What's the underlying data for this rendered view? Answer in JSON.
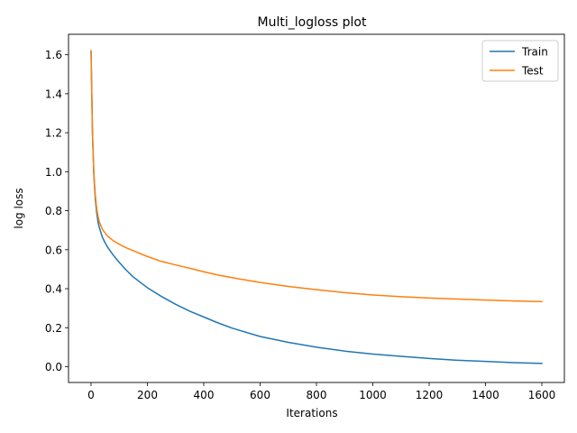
{
  "chart_data": {
    "type": "line",
    "title": "Multi_logloss plot",
    "xlabel": "Iterations",
    "ylabel": "log loss",
    "xlim": [
      -80,
      1680
    ],
    "ylim": [
      -0.081,
      1.705
    ],
    "xticks": [
      0,
      200,
      400,
      600,
      800,
      1000,
      1200,
      1400,
      1600
    ],
    "yticks": [
      0.0,
      0.2,
      0.4,
      0.6,
      0.8,
      1.0,
      1.2,
      1.4,
      1.6
    ],
    "xtick_labels": [
      "0",
      "200",
      "400",
      "600",
      "800",
      "1000",
      "1200",
      "1400",
      "1600"
    ],
    "ytick_labels": [
      "0.0",
      "0.2",
      "0.4",
      "0.6",
      "0.8",
      "1.0",
      "1.2",
      "1.4",
      "1.6"
    ],
    "grid": false,
    "legend_position": "top-right",
    "series": [
      {
        "name": "Train",
        "color": "#1f77b4",
        "x": [
          0,
          5,
          10,
          15,
          20,
          25,
          30,
          40,
          50,
          60,
          80,
          100,
          125,
          150,
          200,
          250,
          300,
          350,
          400,
          450,
          500,
          600,
          700,
          800,
          900,
          1000,
          1100,
          1200,
          1300,
          1400,
          1500,
          1600
        ],
        "y": [
          1.62,
          1.2,
          0.98,
          0.86,
          0.79,
          0.74,
          0.71,
          0.665,
          0.635,
          0.61,
          0.57,
          0.535,
          0.495,
          0.46,
          0.405,
          0.36,
          0.32,
          0.285,
          0.255,
          0.225,
          0.198,
          0.155,
          0.125,
          0.1,
          0.08,
          0.065,
          0.053,
          0.042,
          0.033,
          0.027,
          0.021,
          0.017
        ]
      },
      {
        "name": "Test",
        "color": "#ff7f0e",
        "x": [
          0,
          5,
          10,
          15,
          20,
          25,
          30,
          40,
          50,
          60,
          80,
          100,
          125,
          150,
          200,
          250,
          300,
          350,
          400,
          450,
          500,
          600,
          700,
          800,
          900,
          1000,
          1100,
          1200,
          1300,
          1400,
          1500,
          1600
        ],
        "y": [
          1.62,
          1.2,
          0.99,
          0.88,
          0.81,
          0.77,
          0.74,
          0.705,
          0.685,
          0.668,
          0.645,
          0.628,
          0.61,
          0.595,
          0.565,
          0.54,
          0.522,
          0.505,
          0.487,
          0.47,
          0.457,
          0.432,
          0.412,
          0.395,
          0.38,
          0.368,
          0.359,
          0.352,
          0.347,
          0.342,
          0.337,
          0.334
        ]
      }
    ]
  }
}
